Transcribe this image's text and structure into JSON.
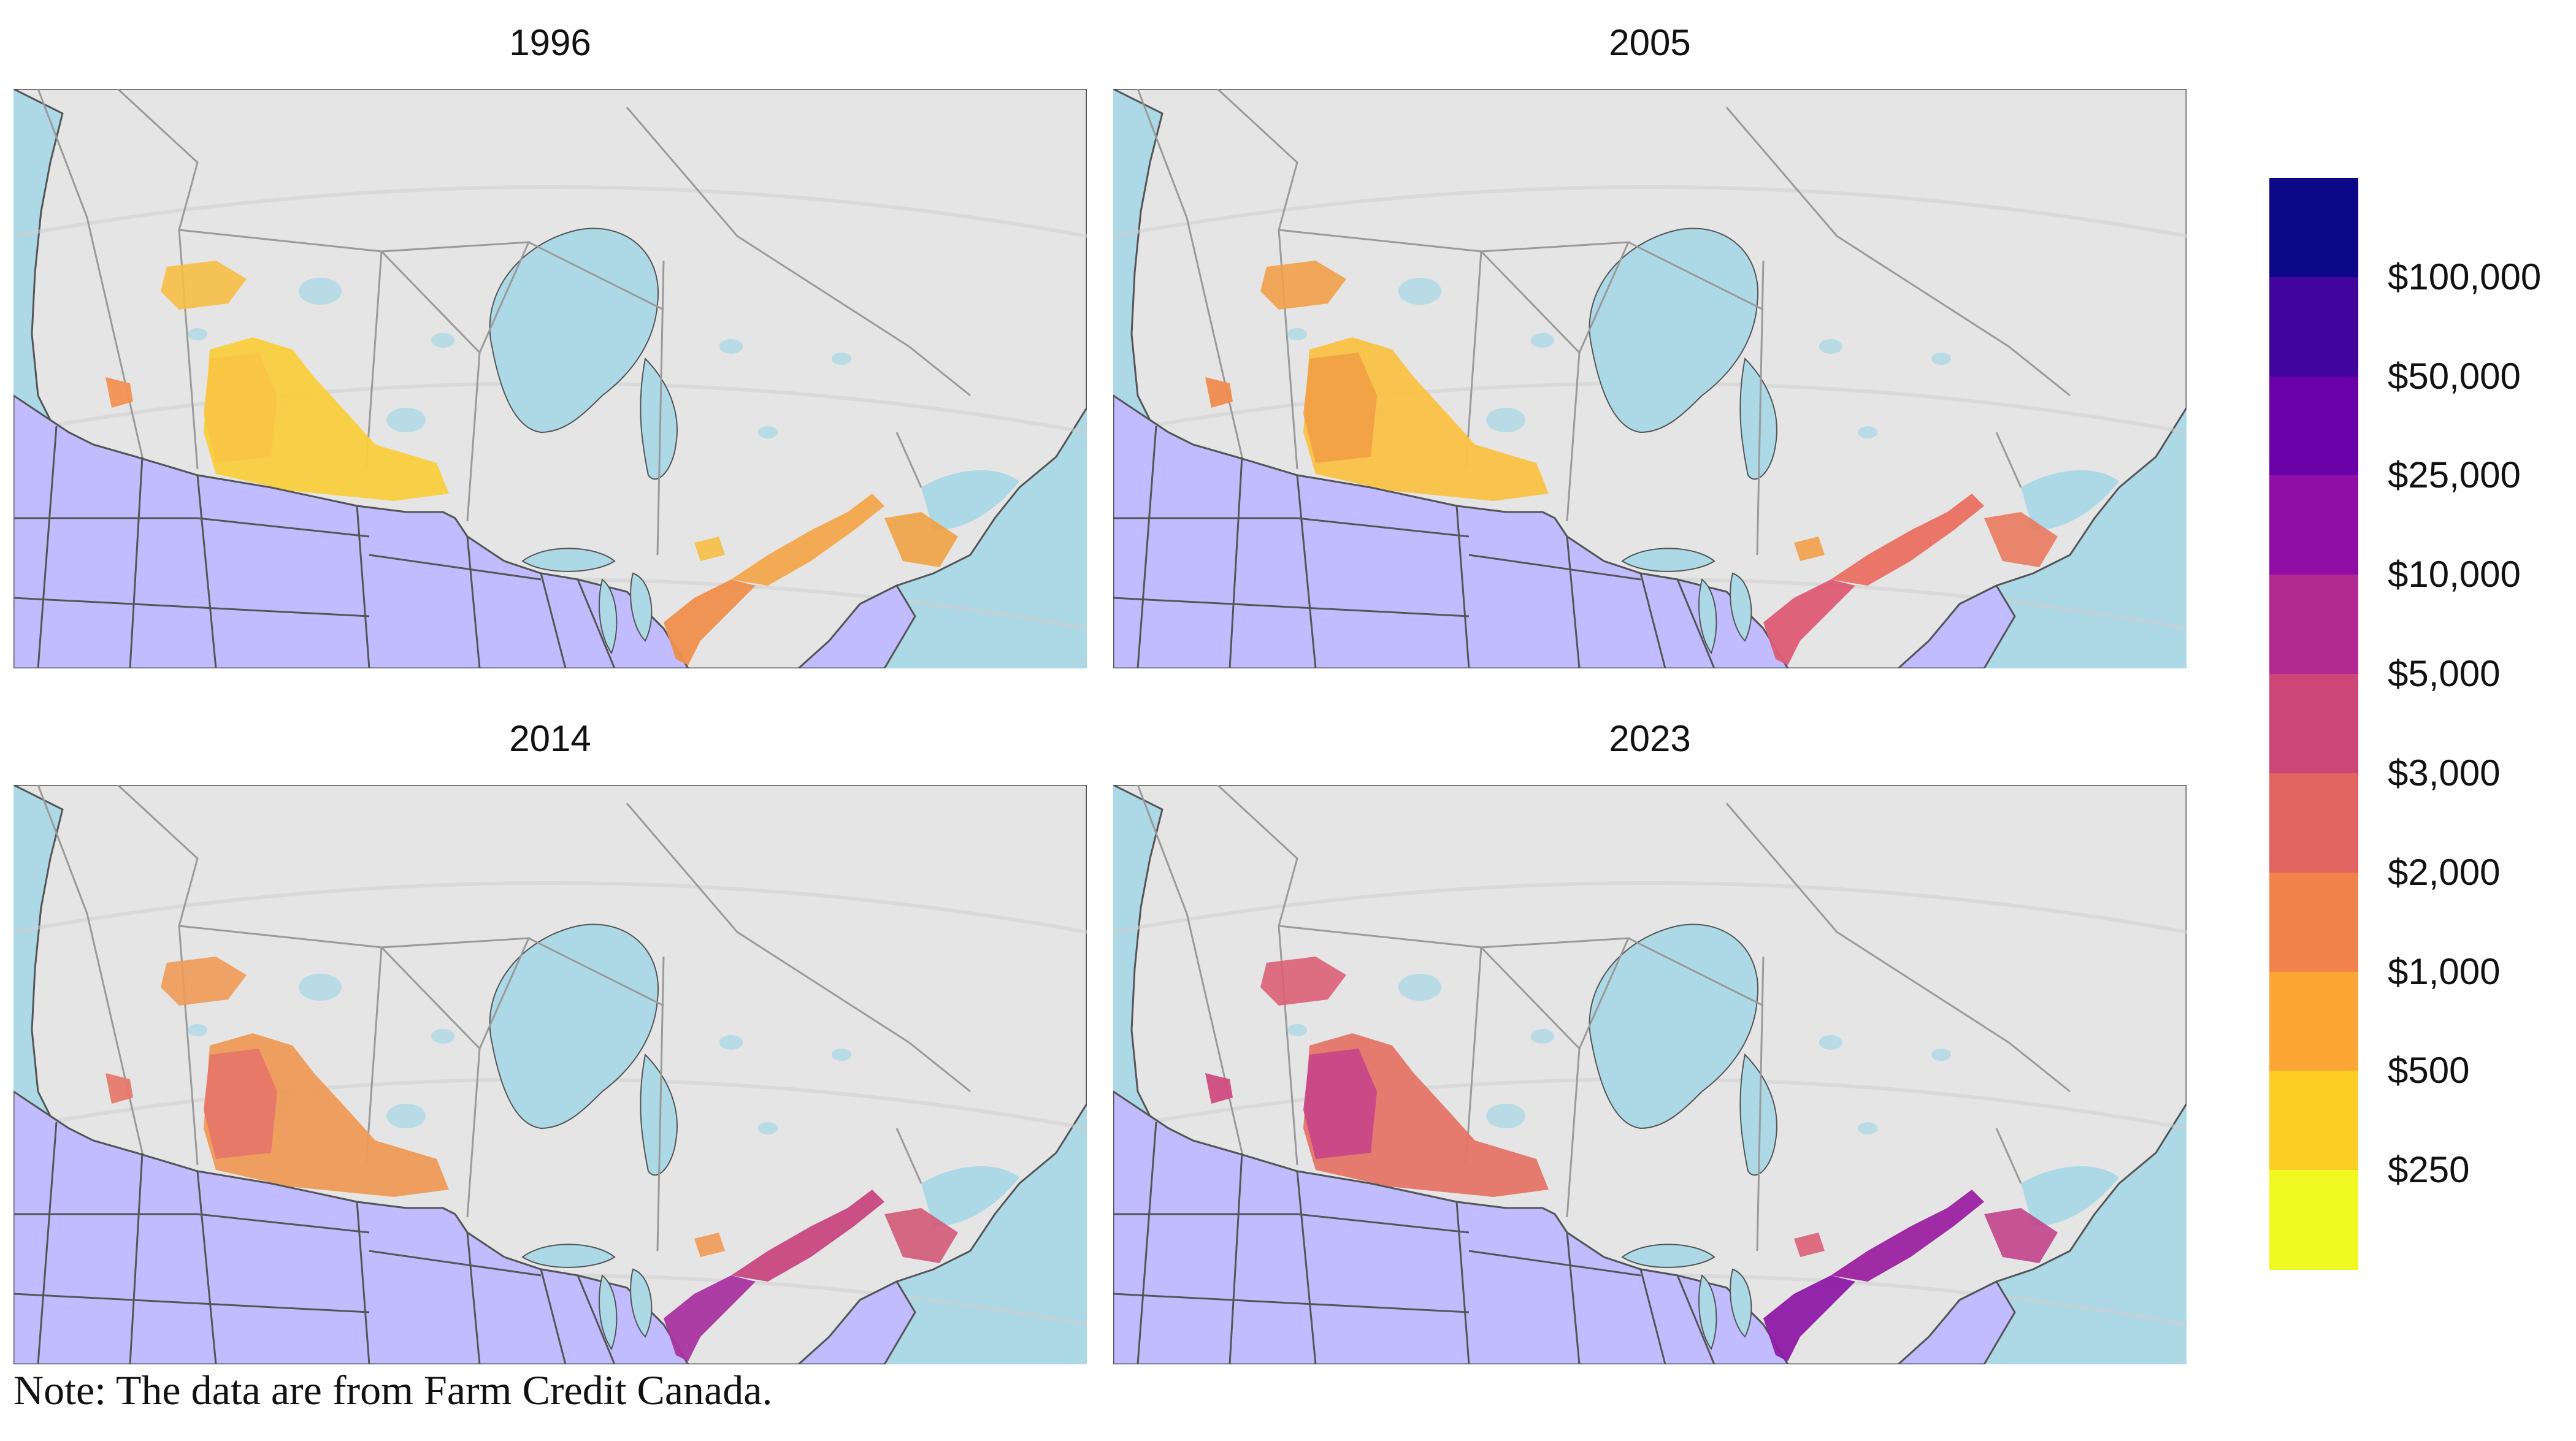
{
  "panels": [
    {
      "title": "1996",
      "prairie": "#f9cf3f",
      "alberta": "#f8c345",
      "bc": "#f39154",
      "north": "#f6be45",
      "ontario": "#ef8f4d",
      "quebec": "#f2a64d",
      "maritime": "#f0a244"
    },
    {
      "title": "2005",
      "prairie": "#f9c245",
      "alberta": "#f1a046",
      "bc": "#ef8b4e",
      "north": "#f2a04a",
      "ontario": "#dd5c74",
      "quebec": "#e97061",
      "maritime": "#e87a5e"
    },
    {
      "title": "2014",
      "prairie": "#ee9b57",
      "alberta": "#e6746a",
      "bc": "#e6786a",
      "north": "#ef9a58",
      "ontario": "#a934a0",
      "quebec": "#c8477f",
      "maritime": "#d15a77"
    },
    {
      "title": "2023",
      "prairie": "#e57468",
      "alberta": "#c5458a",
      "bc": "#d04c82",
      "north": "#db6076",
      "ontario": "#8e1aa6",
      "quebec": "#9b22a0",
      "maritime": "#c2428a"
    }
  ],
  "legend": {
    "colors": [
      "#0d0887",
      "#41049d",
      "#6a00a8",
      "#8f0da4",
      "#b12a90",
      "#cc4778",
      "#e16462",
      "#f2844b",
      "#fca636",
      "#fccd25",
      "#f0f921"
    ],
    "labels": [
      "$100,000",
      "$50,000",
      "$25,000",
      "$10,000",
      "$5,000",
      "$3,000",
      "$2,000",
      "$1,000",
      "$500",
      "$250"
    ]
  },
  "colors": {
    "ocean": "#add8e6",
    "canada_land": "#e5e5e5",
    "usa_land": "#c0bcff",
    "border": "#555555"
  },
  "note": "Note: The data are from Farm Credit Canada."
}
